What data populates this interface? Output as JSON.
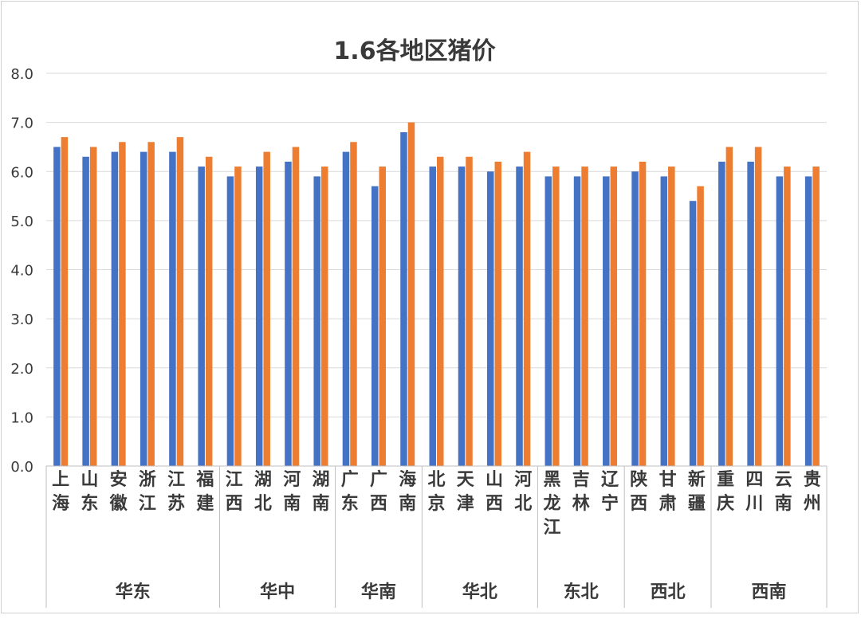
{
  "chart_data": {
    "type": "bar",
    "title": "1.6各地区猪价",
    "xlabel": "",
    "ylabel": "",
    "ylim": [
      0,
      8
    ],
    "yticks": [
      "0.0",
      "1.0",
      "2.0",
      "3.0",
      "4.0",
      "5.0",
      "6.0",
      "7.0",
      "8.0"
    ],
    "grid": true,
    "legend": "none",
    "colors": {
      "series_1": "#4472C4",
      "series_2": "#ED7D31",
      "grid": "#d9d9d9",
      "axis": "#bfbfbf",
      "text": "#3a3a3a"
    },
    "categories": [
      "上海",
      "山东",
      "安徽",
      "浙江",
      "江苏",
      "福建",
      "江西",
      "湖北",
      "河南",
      "湖南",
      "广东",
      "广西",
      "海南",
      "北京",
      "天津",
      "山西",
      "河北",
      "黑龙江",
      "吉林",
      "辽宁",
      "陕西",
      "甘肃",
      "新疆",
      "重庆",
      "四川",
      "云南",
      "贵州"
    ],
    "groups": [
      {
        "label": "华东",
        "count": 6
      },
      {
        "label": "华中",
        "count": 4
      },
      {
        "label": "华南",
        "count": 3
      },
      {
        "label": "华北",
        "count": 4
      },
      {
        "label": "东北",
        "count": 3
      },
      {
        "label": "西北",
        "count": 3
      },
      {
        "label": "西南",
        "count": 4
      }
    ],
    "series": [
      {
        "values": [
          6.5,
          6.3,
          6.4,
          6.4,
          6.4,
          6.1,
          5.9,
          6.1,
          6.2,
          5.9,
          6.4,
          5.7,
          6.8,
          6.1,
          6.1,
          6.0,
          6.1,
          5.9,
          5.9,
          5.9,
          6.0,
          5.9,
          5.4,
          6.2,
          6.2,
          5.9,
          5.9
        ]
      },
      {
        "values": [
          6.7,
          6.5,
          6.6,
          6.6,
          6.7,
          6.3,
          6.1,
          6.4,
          6.5,
          6.1,
          6.6,
          6.1,
          7.0,
          6.3,
          6.3,
          6.2,
          6.4,
          6.1,
          6.1,
          6.1,
          6.2,
          6.1,
          5.7,
          6.5,
          6.5,
          6.1,
          6.1
        ]
      }
    ]
  }
}
